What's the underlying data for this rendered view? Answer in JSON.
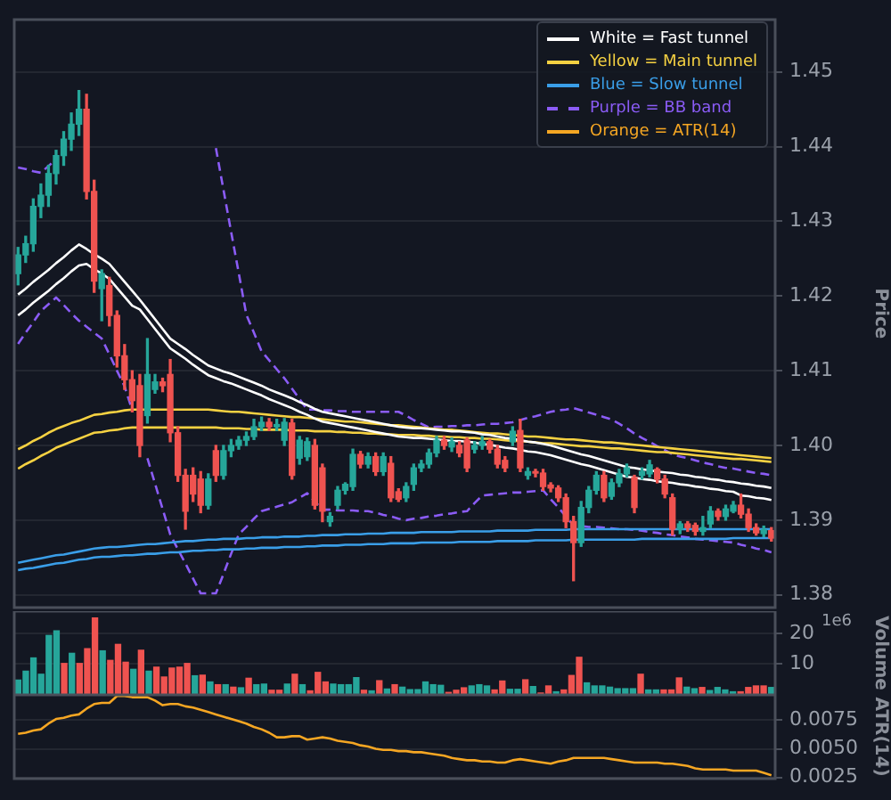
{
  "chart_data": [
    {
      "type": "candlestick",
      "ylabel": "Price",
      "grid": "y",
      "legend": "top right",
      "tick_labels": "y",
      "ylim": [
        1.3783,
        1.457
      ],
      "yticks": [
        1.38,
        1.39,
        {
          "value": 1.4,
          "label": "1.40"
        },
        1.41,
        1.42,
        1.43,
        1.44,
        1.45
      ],
      "categories": [
        null,
        null,
        null,
        null,
        null,
        null,
        null,
        null,
        null,
        null,
        null,
        null,
        null,
        null,
        null,
        null,
        null,
        null,
        null,
        null,
        null,
        null,
        null,
        null,
        null,
        null,
        null,
        null,
        null,
        null,
        null,
        null,
        null,
        null,
        null,
        null,
        null,
        null,
        null,
        null,
        null,
        null,
        null,
        null,
        null,
        null,
        null,
        null,
        null,
        null,
        null,
        null,
        null,
        null,
        null,
        null,
        null,
        null,
        null,
        null,
        null,
        null,
        null,
        null,
        null,
        null,
        null,
        null,
        null,
        null,
        null,
        null,
        null,
        null,
        null,
        null,
        null,
        null,
        null,
        null,
        null,
        null,
        null,
        null,
        null,
        null,
        null,
        null,
        null,
        null,
        null,
        null,
        null,
        null,
        null,
        null,
        null,
        null,
        null,
        null
      ],
      "ohlc": [
        [
          1.423,
          1.4265,
          1.4215,
          1.4255
        ],
        [
          1.4255,
          1.428,
          1.4245,
          1.427
        ],
        [
          1.427,
          1.433,
          1.426,
          1.432
        ],
        [
          1.432,
          1.435,
          1.4305,
          1.4335
        ],
        [
          1.4335,
          1.4375,
          1.432,
          1.4364
        ],
        [
          1.4364,
          1.4395,
          1.435,
          1.4388
        ],
        [
          1.4388,
          1.442,
          1.4375,
          1.441
        ],
        [
          1.441,
          1.4445,
          1.4395,
          1.443
        ],
        [
          1.443,
          1.4475,
          1.4415,
          1.445
        ],
        [
          1.445,
          1.447,
          1.433,
          1.434
        ],
        [
          1.434,
          1.4355,
          1.4205,
          1.422
        ],
        [
          1.421,
          1.4235,
          1.4167,
          1.423
        ],
        [
          1.4214,
          1.4225,
          1.416,
          1.4174
        ],
        [
          1.4174,
          1.418,
          1.4105,
          1.412
        ],
        [
          1.412,
          1.4135,
          1.4075,
          1.4088
        ],
        [
          1.4088,
          1.41,
          1.4045,
          1.406
        ],
        [
          1.408,
          1.4095,
          1.3985,
          1.4
        ],
        [
          1.404,
          1.4143,
          1.403,
          1.4095
        ],
        [
          1.4075,
          1.4095,
          1.407,
          1.4085
        ],
        [
          1.4085,
          1.409,
          1.4072,
          1.408
        ],
        [
          1.4095,
          1.4115,
          1.4005,
          1.4017
        ],
        [
          1.4017,
          1.4025,
          1.3952,
          1.396
        ],
        [
          1.396,
          1.3968,
          1.3888,
          1.3912
        ],
        [
          1.396,
          1.397,
          1.3925,
          1.3935
        ],
        [
          1.3955,
          1.3965,
          1.391,
          1.392
        ],
        [
          1.392,
          1.3962,
          1.3915,
          1.3955
        ],
        [
          1.3993,
          1.4,
          1.3952,
          1.396
        ],
        [
          1.396,
          1.4,
          1.3955,
          1.3993
        ],
        [
          1.3993,
          1.4008,
          1.3985,
          1.4
        ],
        [
          1.4,
          1.4012,
          1.3995,
          1.4007
        ],
        [
          1.4007,
          1.4018,
          1.4,
          1.4012
        ],
        [
          1.4012,
          1.4035,
          1.4008,
          1.4025
        ],
        [
          1.4025,
          1.4038,
          1.402,
          1.4031
        ],
        [
          1.4031,
          1.4036,
          1.402,
          1.4025
        ],
        [
          1.4025,
          1.4035,
          1.402,
          1.4028
        ],
        [
          1.4007,
          1.4036,
          1.4,
          1.4031
        ],
        [
          1.403,
          1.4035,
          1.3955,
          1.396
        ],
        [
          1.3983,
          1.4012,
          1.3975,
          1.4007
        ],
        [
          1.3985,
          1.401,
          1.398,
          1.4005
        ],
        [
          1.4,
          1.4008,
          1.3915,
          1.392
        ],
        [
          1.397,
          1.3975,
          1.3898,
          1.3912
        ],
        [
          1.3898,
          1.391,
          1.3892,
          1.3905
        ],
        [
          1.392,
          1.3945,
          1.3915,
          1.394
        ],
        [
          1.394,
          1.395,
          1.3935,
          1.3948
        ],
        [
          1.3945,
          1.3995,
          1.394,
          1.3988
        ],
        [
          1.3988,
          1.3992,
          1.397,
          1.3975
        ],
        [
          1.3975,
          1.399,
          1.397,
          1.3985
        ],
        [
          1.3985,
          1.399,
          1.396,
          1.3965
        ],
        [
          1.3965,
          1.399,
          1.396,
          1.3985
        ],
        [
          1.3976,
          1.3985,
          1.3925,
          1.393
        ],
        [
          1.3938,
          1.3942,
          1.3925,
          1.3928
        ],
        [
          1.393,
          1.395,
          1.3925,
          1.3945
        ],
        [
          1.3948,
          1.3975,
          1.394,
          1.397
        ],
        [
          1.397,
          1.398,
          1.3965,
          1.3975
        ],
        [
          1.3975,
          1.3995,
          1.397,
          1.399
        ],
        [
          1.399,
          1.4012,
          1.3985,
          1.4007
        ],
        [
          1.4007,
          1.4012,
          1.3995,
          1.4
        ],
        [
          1.3998,
          1.401,
          1.3992,
          1.4005
        ],
        [
          1.4,
          1.4005,
          1.3985,
          1.399
        ],
        [
          1.4007,
          1.401,
          1.3965,
          1.397
        ],
        [
          1.3995,
          1.4005,
          1.399,
          1.4
        ],
        [
          1.4,
          1.4012,
          1.3995,
          1.4005
        ],
        [
          1.4005,
          1.4008,
          1.399,
          1.3995
        ],
        [
          1.3995,
          1.4,
          1.397,
          1.3975
        ],
        [
          1.398,
          1.3985,
          1.3965,
          1.397
        ],
        [
          1.4005,
          1.4025,
          1.4,
          1.4019
        ],
        [
          1.402,
          1.4035,
          1.3965,
          1.397
        ],
        [
          1.396,
          1.397,
          1.3955,
          1.3965
        ],
        [
          1.3965,
          1.3968,
          1.3958,
          1.3963
        ],
        [
          1.3963,
          1.3968,
          1.394,
          1.3945
        ],
        [
          1.3947,
          1.395,
          1.3938,
          1.3943
        ],
        [
          1.3943,
          1.3946,
          1.3925,
          1.393
        ],
        [
          1.393,
          1.3935,
          1.389,
          1.3898
        ],
        [
          1.3898,
          1.3905,
          1.3819,
          1.387
        ],
        [
          1.387,
          1.3925,
          1.3865,
          1.3917
        ],
        [
          1.3917,
          1.3945,
          1.391,
          1.394
        ],
        [
          1.394,
          1.3965,
          1.3935,
          1.396
        ],
        [
          1.396,
          1.3965,
          1.3925,
          1.393
        ],
        [
          1.3932,
          1.3955,
          1.3928,
          1.395
        ],
        [
          1.395,
          1.3968,
          1.3945,
          1.3962
        ],
        [
          1.3962,
          1.3975,
          1.3958,
          1.397
        ],
        [
          1.3957,
          1.396,
          1.391,
          1.3917
        ],
        [
          1.396,
          1.397,
          1.3955,
          1.3965
        ],
        [
          1.3962,
          1.398,
          1.3958,
          1.3974
        ],
        [
          1.3968,
          1.397,
          1.395,
          1.3955
        ],
        [
          1.3955,
          1.396,
          1.393,
          1.3935
        ],
        [
          1.393,
          1.3935,
          1.388,
          1.3888
        ],
        [
          1.3888,
          1.3898,
          1.3882,
          1.3895
        ],
        [
          1.3895,
          1.3898,
          1.3885,
          1.389
        ],
        [
          1.3893,
          1.3896,
          1.388,
          1.3885
        ],
        [
          1.3885,
          1.3905,
          1.388,
          1.389
        ],
        [
          1.3895,
          1.3918,
          1.389,
          1.3912
        ],
        [
          1.3912,
          1.3915,
          1.39,
          1.3905
        ],
        [
          1.3905,
          1.392,
          1.39,
          1.3915
        ],
        [
          1.3912,
          1.3925,
          1.391,
          1.392
        ],
        [
          1.392,
          1.3935,
          1.3903,
          1.3908
        ],
        [
          1.3908,
          1.3915,
          1.3885,
          1.389
        ],
        [
          1.389,
          1.3895,
          1.388,
          1.3883
        ],
        [
          1.3882,
          1.3892,
          1.3878,
          1.3887
        ],
        [
          1.3886,
          1.389,
          1.3872,
          1.3876
        ]
      ],
      "colors": [
        "#26a69a",
        "#26a69a",
        "#26a69a",
        "#26a69a",
        "#26a69a",
        "#26a69a",
        "#26a69a",
        "#26a69a",
        "#26a69a",
        "#ef5350",
        "#ef5350",
        "#26a69a",
        "#ef5350",
        "#ef5350",
        "#ef5350",
        "#ef5350",
        "#ef5350",
        "#26a69a",
        "#26a69a",
        "#ef5350",
        "#ef5350",
        "#ef5350",
        "#ef5350",
        "#ef5350",
        "#ef5350",
        "#26a69a",
        "#ef5350",
        "#26a69a",
        "#26a69a",
        "#26a69a",
        "#26a69a",
        "#26a69a",
        "#26a69a",
        "#ef5350",
        "#26a69a",
        "#26a69a",
        "#ef5350",
        "#26a69a",
        "#26a69a",
        "#ef5350",
        "#ef5350",
        "#26a69a",
        "#26a69a",
        "#26a69a",
        "#26a69a",
        "#ef5350",
        "#26a69a",
        "#ef5350",
        "#26a69a",
        "#ef5350",
        "#ef5350",
        "#26a69a",
        "#26a69a",
        "#26a69a",
        "#26a69a",
        "#26a69a",
        "#ef5350",
        "#26a69a",
        "#ef5350",
        "#ef5350",
        "#26a69a",
        "#26a69a",
        "#ef5350",
        "#ef5350",
        "#ef5350",
        "#26a69a",
        "#ef5350",
        "#26a69a",
        "#ef5350",
        "#ef5350",
        "#ef5350",
        "#ef5350",
        "#ef5350",
        "#ef5350",
        "#26a69a",
        "#26a69a",
        "#26a69a",
        "#ef5350",
        "#26a69a",
        "#26a69a",
        "#26a69a",
        "#ef5350",
        "#26a69a",
        "#26a69a",
        "#ef5350",
        "#ef5350",
        "#ef5350",
        "#26a69a",
        "#ef5350",
        "#ef5350",
        "#26a69a",
        "#26a69a",
        "#ef5350",
        "#26a69a",
        "#26a69a",
        "#ef5350",
        "#ef5350",
        "#ef5350",
        "#26a69a",
        "#ef5350"
      ],
      "series": [
        {
          "type": "line",
          "name": "White = Fast tunnel",
          "color": "#ffffff",
          "values": [
            1.4202,
            1.421,
            1.4219,
            1.4227,
            1.4235,
            1.4244,
            1.4252,
            1.4261,
            1.4269,
            1.4263,
            1.4256,
            1.425,
            1.4243,
            1.4231,
            1.4219,
            1.4207,
            1.4195,
            1.4182,
            1.4169,
            1.4156,
            1.4143,
            1.4136,
            1.4129,
            1.4121,
            1.4114,
            1.4107,
            1.4103,
            1.4099,
            1.4096,
            1.4092,
            1.4088,
            1.4084,
            1.408,
            1.4075,
            1.4071,
            1.4067,
            1.4063,
            1.4058,
            1.4054,
            1.4049,
            1.4045,
            1.4043,
            1.4041,
            1.4039,
            1.4037,
            1.4035,
            1.4033,
            1.4031,
            1.4029,
            1.4027,
            1.4025,
            1.4024,
            1.4023,
            1.4023,
            1.4022,
            1.4021,
            1.402,
            1.4019,
            1.4019,
            1.4018,
            1.4017,
            1.4015,
            1.4014,
            1.4012,
            1.401,
            1.4009,
            1.4007,
            1.4005,
            1.4004,
            1.4002,
            1.4,
            1.3997,
            1.3994,
            1.3991,
            1.3988,
            1.3986,
            1.3983,
            1.398,
            1.3977,
            1.3974,
            1.3971,
            1.397,
            1.3968,
            1.3967,
            1.3965,
            1.3964,
            1.3963,
            1.3961,
            1.396,
            1.3958,
            1.3957,
            1.3955,
            1.3954,
            1.3952,
            1.3951,
            1.3949,
            1.3948,
            1.3946,
            1.3945,
            1.3943
          ]
        },
        {
          "type": "line",
          "color": "#ffffff",
          "values": [
            1.4174,
            1.4182,
            1.4191,
            1.4199,
            1.4207,
            1.4216,
            1.4224,
            1.4233,
            1.4241,
            1.4243,
            1.4236,
            1.423,
            1.4223,
            1.4211,
            1.4199,
            1.4187,
            1.4182,
            1.4169,
            1.4156,
            1.4143,
            1.413,
            1.4123,
            1.4116,
            1.4108,
            1.4101,
            1.4094,
            1.409,
            1.4086,
            1.4083,
            1.4079,
            1.4075,
            1.4071,
            1.4067,
            1.4062,
            1.4058,
            1.4054,
            1.405,
            1.4045,
            1.4041,
            1.4036,
            1.4032,
            1.403,
            1.4028,
            1.4026,
            1.4024,
            1.4022,
            1.402,
            1.4018,
            1.4016,
            1.4014,
            1.4012,
            1.4011,
            1.401,
            1.401,
            1.4009,
            1.4008,
            1.4007,
            1.4006,
            1.4006,
            1.4005,
            1.4004,
            1.4002,
            1.4001,
            1.3999,
            1.3997,
            1.3996,
            1.3994,
            1.3992,
            1.3991,
            1.3989,
            1.3987,
            1.3984,
            1.3981,
            1.3978,
            1.3975,
            1.3973,
            1.397,
            1.3967,
            1.3964,
            1.3961,
            1.3958,
            1.3957,
            1.3955,
            1.3954,
            1.3952,
            1.3951,
            1.395,
            1.3948,
            1.3947,
            1.3945,
            1.3944,
            1.3942,
            1.3941,
            1.3939,
            1.3938,
            1.3933,
            1.3932,
            1.393,
            1.3929,
            1.3927
          ]
        },
        {
          "type": "line",
          "name": "Yellow = Main tunnel",
          "color": "#f5d142",
          "values": [
            1.3995,
            1.4,
            1.4006,
            1.4011,
            1.4017,
            1.4022,
            1.4026,
            1.403,
            1.4033,
            1.4037,
            1.4041,
            1.4042,
            1.4044,
            1.4045,
            1.4047,
            1.4048,
            1.4048,
            1.4048,
            1.4048,
            1.4048,
            1.4048,
            1.4048,
            1.4048,
            1.4048,
            1.4048,
            1.4048,
            1.4047,
            1.4046,
            1.4045,
            1.4045,
            1.4044,
            1.4043,
            1.4042,
            1.4041,
            1.404,
            1.4039,
            1.4038,
            1.4038,
            1.4037,
            1.4036,
            1.4035,
            1.4034,
            1.4033,
            1.4032,
            1.4032,
            1.4031,
            1.403,
            1.4029,
            1.4028,
            1.4027,
            1.4027,
            1.4026,
            1.4025,
            1.4024,
            1.4023,
            1.4022,
            1.4021,
            1.4021,
            1.402,
            1.4019,
            1.4018,
            1.4017,
            1.4016,
            1.4016,
            1.4015,
            1.4014,
            1.4013,
            1.4012,
            1.4012,
            1.4011,
            1.401,
            1.4009,
            1.4008,
            1.4008,
            1.4007,
            1.4006,
            1.4005,
            1.4004,
            1.4004,
            1.4003,
            1.4002,
            1.4001,
            1.4,
            1.3999,
            1.3998,
            1.3997,
            1.3996,
            1.3995,
            1.3994,
            1.3993,
            1.3992,
            1.3991,
            1.399,
            1.3989,
            1.3988,
            1.3987,
            1.3986,
            1.3985,
            1.3984,
            1.3983
          ]
        },
        {
          "type": "line",
          "color": "#f5d142",
          "values": [
            1.3969,
            1.3975,
            1.398,
            1.3986,
            1.3991,
            1.3997,
            1.4001,
            1.4005,
            1.4009,
            1.4013,
            1.4017,
            1.4018,
            1.402,
            1.4021,
            1.4023,
            1.4024,
            1.4024,
            1.4024,
            1.4024,
            1.4024,
            1.4024,
            1.4024,
            1.4024,
            1.4024,
            1.4024,
            1.4024,
            1.4024,
            1.4023,
            1.4023,
            1.4023,
            1.4022,
            1.4022,
            1.4021,
            1.4021,
            1.4021,
            1.4021,
            1.402,
            1.402,
            1.402,
            1.4019,
            1.4019,
            1.4019,
            1.4018,
            1.4018,
            1.4017,
            1.4017,
            1.4016,
            1.4016,
            1.4015,
            1.4015,
            1.4014,
            1.4014,
            1.4014,
            1.4013,
            1.4013,
            1.4012,
            1.4012,
            1.4011,
            1.4011,
            1.401,
            1.401,
            1.4009,
            1.4009,
            1.4008,
            1.4007,
            1.4006,
            1.4006,
            1.4005,
            1.4004,
            1.4003,
            1.4003,
            1.4002,
            1.4001,
            1.4,
            1.3999,
            1.3999,
            1.3998,
            1.3997,
            1.3996,
            1.3996,
            1.3995,
            1.3994,
            1.3993,
            1.3992,
            1.3991,
            1.3991,
            1.399,
            1.3989,
            1.3988,
            1.3987,
            1.3986,
            1.3985,
            1.3984,
            1.3983,
            1.3982,
            1.3982,
            1.3981,
            1.398,
            1.3979,
            1.3978
          ]
        },
        {
          "type": "line",
          "name": "Blue = Slow tunnel",
          "color": "#3a9ee8",
          "values": [
            1.3843,
            1.3845,
            1.3847,
            1.3849,
            1.3851,
            1.3853,
            1.3854,
            1.3856,
            1.3858,
            1.386,
            1.3862,
            1.3863,
            1.3864,
            1.3864,
            1.3865,
            1.3866,
            1.3867,
            1.3868,
            1.3868,
            1.3869,
            1.387,
            1.3871,
            1.3872,
            1.3872,
            1.3873,
            1.3874,
            1.3874,
            1.3875,
            1.3875,
            1.3875,
            1.3876,
            1.3876,
            1.3877,
            1.3877,
            1.3877,
            1.3878,
            1.3878,
            1.3878,
            1.3879,
            1.3879,
            1.388,
            1.388,
            1.388,
            1.3881,
            1.3881,
            1.3881,
            1.3882,
            1.3882,
            1.3882,
            1.3883,
            1.3883,
            1.3883,
            1.3883,
            1.3884,
            1.3884,
            1.3884,
            1.3884,
            1.3884,
            1.3885,
            1.3885,
            1.3885,
            1.3885,
            1.3885,
            1.3886,
            1.3886,
            1.3886,
            1.3886,
            1.3886,
            1.3887,
            1.3887,
            1.3887,
            1.3887,
            1.3887,
            1.3888,
            1.3888,
            1.3888,
            1.3888,
            1.3888,
            1.3888,
            1.3888,
            1.3888,
            1.3888,
            1.3888,
            1.3888,
            1.3888,
            1.3888,
            1.3888,
            1.3888,
            1.3888,
            1.3888,
            1.3888,
            1.3888,
            1.3888,
            1.3888,
            1.3888,
            1.3888,
            1.3888,
            1.3888,
            1.3888,
            1.3888
          ]
        },
        {
          "type": "line",
          "color": "#3a9ee8",
          "values": [
            1.3833,
            1.3835,
            1.3836,
            1.3838,
            1.384,
            1.3842,
            1.3843,
            1.3845,
            1.3847,
            1.3848,
            1.385,
            1.3851,
            1.3851,
            1.3852,
            1.3853,
            1.3853,
            1.3854,
            1.3855,
            1.3855,
            1.3856,
            1.3857,
            1.3857,
            1.3858,
            1.3859,
            1.3859,
            1.386,
            1.386,
            1.3861,
            1.3861,
            1.3861,
            1.3862,
            1.3862,
            1.3863,
            1.3863,
            1.3863,
            1.3864,
            1.3864,
            1.3864,
            1.3865,
            1.3865,
            1.3866,
            1.3866,
            1.3866,
            1.3867,
            1.3867,
            1.3867,
            1.3868,
            1.3868,
            1.3868,
            1.3869,
            1.3869,
            1.3869,
            1.3869,
            1.387,
            1.387,
            1.387,
            1.387,
            1.387,
            1.3871,
            1.3871,
            1.3871,
            1.3871,
            1.3871,
            1.3872,
            1.3872,
            1.3872,
            1.3872,
            1.3872,
            1.3873,
            1.3873,
            1.3873,
            1.3873,
            1.3873,
            1.3874,
            1.3874,
            1.3874,
            1.3874,
            1.3874,
            1.3874,
            1.3874,
            1.3874,
            1.3874,
            1.3875,
            1.3875,
            1.3875,
            1.3875,
            1.3875,
            1.3875,
            1.3875,
            1.3875,
            1.3875,
            1.3875,
            1.3875,
            1.3875,
            1.3876,
            1.3876,
            1.3876,
            1.3876,
            1.3876,
            1.3876
          ]
        },
        {
          "type": "line",
          "name": "Purple = BB band",
          "color": "#8b5cf6",
          "line_style": "dashed",
          "values": [
            1.4372,
            1.437,
            1.4367,
            1.4365,
            1.4374,
            1.4383,
            null,
            null,
            null,
            null,
            null,
            null,
            null,
            null,
            null,
            null,
            null,
            null,
            null,
            null,
            null,
            null,
            null,
            null,
            null,
            null,
            1.4398,
            1.4342,
            1.4286,
            1.4231,
            1.4175,
            1.4151,
            1.4126,
            1.4114,
            1.4102,
            1.409,
            1.4076,
            1.4062,
            1.4048,
            1.4048,
            1.4047,
            1.4047,
            1.4046,
            1.4046,
            1.4045,
            1.4045,
            1.4045,
            1.4045,
            1.4045,
            1.4045,
            1.4045,
            1.404,
            1.4034,
            1.4029,
            1.4024,
            1.4025,
            1.4025,
            1.4026,
            1.4026,
            1.4027,
            1.4027,
            1.4028,
            1.4029,
            1.4029,
            1.403,
            1.4031,
            1.4034,
            1.4037,
            1.4039,
            1.4042,
            1.4045,
            1.4047,
            1.4048,
            1.405,
            1.4047,
            1.4044,
            1.4041,
            1.4038,
            1.4035,
            1.4029,
            1.4023,
            1.4016,
            1.401,
            1.4005,
            1.3999,
            1.3994,
            1.3988,
            1.3985,
            1.3983,
            1.398,
            1.3977,
            1.3975,
            1.3972,
            1.397,
            1.3969,
            1.3967,
            1.3965,
            1.3963,
            1.3962,
            1.396
          ]
        },
        {
          "type": "line",
          "color": "#8b5cf6",
          "line_style": "dashed",
          "values": [
            1.4136,
            1.4151,
            1.4165,
            1.418,
            1.4189,
            1.4198,
            1.4188,
            1.4177,
            1.4167,
            1.4159,
            1.4151,
            1.4143,
            1.4122,
            1.41,
            1.4079,
            1.4047,
            null,
            1.3983,
            1.3949,
            1.3915,
            1.3881,
            1.3861,
            1.3842,
            1.3822,
            1.3802,
            1.3802,
            1.3802,
            1.3828,
            1.3855,
            1.3881,
            1.3891,
            1.3902,
            1.3912,
            1.3915,
            1.3918,
            1.3921,
            1.3924,
            1.393,
            1.3936,
            1.3925,
            1.3914,
            1.3914,
            1.3913,
            1.3913,
            1.3913,
            1.3912,
            1.3912,
            1.391,
            1.3907,
            1.3905,
            1.3902,
            1.39,
            1.3902,
            1.3903,
            1.3905,
            1.3906,
            1.3908,
            1.3909,
            1.3911,
            1.3912,
            1.3923,
            1.3933,
            1.3934,
            1.3935,
            1.3936,
            1.3937,
            1.3937,
            1.3938,
            1.3939,
            1.394,
            1.3928,
            1.3917,
            1.3905,
            1.3893,
            1.3892,
            1.3891,
            1.3891,
            1.389,
            1.3889,
            1.3888,
            1.3888,
            1.3887,
            1.3886,
            1.3884,
            1.3883,
            1.3881,
            1.388,
            1.3878,
            1.3877,
            1.3875,
            1.3874,
            1.3873,
            1.3872,
            1.3871,
            1.387,
            1.3867,
            1.3865,
            1.3862,
            1.386,
            1.3857
          ]
        }
      ]
    },
    {
      "type": "bar",
      "ylabel": "Volume",
      "grid": "y",
      "tick_labels": "y",
      "annotations": [
        "1e6"
      ],
      "ylim": [
        0,
        27.2
      ],
      "yticks": [
        10,
        20
      ],
      "categories": [
        null,
        null,
        null,
        null,
        null,
        null,
        null,
        null,
        null,
        null,
        null,
        null,
        null,
        null,
        null,
        null,
        null,
        null,
        null,
        null,
        null,
        null,
        null,
        null,
        null,
        null,
        null,
        null,
        null,
        null,
        null,
        null,
        null,
        null,
        null,
        null,
        null,
        null,
        null,
        null,
        null,
        null,
        null,
        null,
        null,
        null,
        null,
        null,
        null,
        null,
        null,
        null,
        null,
        null,
        null,
        null,
        null,
        null,
        null,
        null,
        null,
        null,
        null,
        null,
        null,
        null,
        null,
        null,
        null,
        null,
        null,
        null,
        null,
        null,
        null,
        null,
        null,
        null,
        null,
        null,
        null,
        null,
        null,
        null,
        null,
        null,
        null,
        null,
        null,
        null,
        null,
        null,
        null,
        null,
        null,
        null,
        null,
        null,
        null
      ],
      "values": [
        4.8,
        7.7,
        12,
        6.7,
        19.3,
        20.8,
        10.2,
        13.5,
        10.2,
        15,
        25,
        14.3,
        11.2,
        16.4,
        10.6,
        8.3,
        14.5,
        7.7,
        9,
        5.8,
        8.7,
        9,
        10.2,
        6.2,
        6.4,
        4.2,
        3.3,
        3.3,
        2.5,
        2.3,
        5.4,
        3.3,
        3.5,
        1.5,
        1.5,
        3.5,
        6.7,
        3.3,
        1.3,
        7.3,
        4.2,
        3.5,
        3.3,
        3.3,
        5.6,
        1.5,
        1.3,
        4.6,
        1.9,
        3.3,
        2.5,
        1.7,
        1.7,
        4.2,
        3.3,
        3.1,
        0.8,
        1.5,
        2.3,
        2.9,
        3.3,
        2.9,
        1.6,
        4.5,
        1.8,
        1.8,
        4.9,
        2.7,
        0.6,
        2.9,
        1,
        1.6,
        6.3,
        12.2,
        3.9,
        2.9,
        2.9,
        2.5,
        2,
        2,
        2,
        6.7,
        1.6,
        1.6,
        1.6,
        1.6,
        5.5,
        2.5,
        2,
        2.4,
        1.4,
        2.4,
        1.6,
        1,
        1,
        2.4,
        2.9,
        2.9,
        2.4
      ],
      "colors": [
        "#26a69a",
        "#26a69a",
        "#26a69a",
        "#26a69a",
        "#26a69a",
        "#26a69a",
        "#ef5350",
        "#26a69a",
        "#ef5350",
        "#ef5350",
        "#ef5350",
        "#26a69a",
        "#ef5350",
        "#ef5350",
        "#ef5350",
        "#26a69a",
        "#ef5350",
        "#26a69a",
        "#ef5350",
        "#ef5350",
        "#ef5350",
        "#ef5350",
        "#ef5350",
        "#26a69a",
        "#ef5350",
        "#26a69a",
        "#ef5350",
        "#26a69a",
        "#ef5350",
        "#26a69a",
        "#ef5350",
        "#26a69a",
        "#26a69a",
        "#ef5350",
        "#ef5350",
        "#26a69a",
        "#ef5350",
        "#26a69a",
        "#ef5350",
        "#ef5350",
        "#ef5350",
        "#26a69a",
        "#26a69a",
        "#26a69a",
        "#26a69a",
        "#ef5350",
        "#26a69a",
        "#ef5350",
        "#26a69a",
        "#ef5350",
        "#26a69a",
        "#26a69a",
        "#26a69a",
        "#26a69a",
        "#26a69a",
        "#26a69a",
        "#ef5350",
        "#ef5350",
        "#ef5350",
        "#26a69a",
        "#26a69a",
        "#26a69a",
        "#ef5350",
        "#ef5350",
        "#26a69a",
        "#26a69a",
        "#ef5350",
        "#26a69a",
        "#ef5350",
        "#ef5350",
        "#26a69a",
        "#ef5350",
        "#ef5350",
        "#ef5350",
        "#26a69a",
        "#26a69a",
        "#26a69a",
        "#26a69a",
        "#26a69a",
        "#26a69a",
        "#26a69a",
        "#ef5350",
        "#26a69a",
        "#26a69a",
        "#ef5350",
        "#ef5350",
        "#ef5350",
        "#26a69a",
        "#26a69a",
        "#ef5350",
        "#26a69a",
        "#26a69a",
        "#26a69a",
        "#26a69a",
        "#ef5350",
        "#ef5350",
        "#ef5350",
        "#ef5350",
        "#26a69a"
      ]
    },
    {
      "type": "line",
      "ylabel": "ATR(14)",
      "grid": "y",
      "tick_labels": "y",
      "ylim": [
        0.0024,
        0.0097
      ],
      "yticks": [
        0.0025,
        {
          "value": 0.005,
          "label": "0.0050"
        },
        0.0075
      ],
      "categories": [
        null,
        null,
        null,
        null,
        null,
        null,
        null,
        null,
        null,
        null,
        null,
        null,
        null,
        null,
        null,
        null,
        null,
        null,
        null,
        null,
        null,
        null,
        null,
        null,
        null,
        null,
        null,
        null,
        null,
        null,
        null,
        null,
        null,
        null,
        null,
        null,
        null,
        null,
        null,
        null,
        null,
        null,
        null,
        null,
        null,
        null,
        null,
        null,
        null,
        null,
        null,
        null,
        null,
        null,
        null,
        null,
        null,
        null,
        null,
        null,
        null,
        null,
        null,
        null,
        null,
        null,
        null,
        null,
        null,
        null,
        null,
        null,
        null,
        null,
        null,
        null,
        null,
        null,
        null,
        null,
        null,
        null,
        null,
        null,
        null,
        null,
        null,
        null,
        null,
        null,
        null,
        null,
        null,
        null,
        null,
        null,
        null,
        null,
        null,
        null
      ],
      "series": [
        {
          "name": "Orange = ATR(14)",
          "color": "#f5a623",
          "values": [
            0.0063,
            0.0064,
            0.0066,
            0.0067,
            0.0072,
            0.0076,
            0.0077,
            0.0079,
            0.008,
            0.0085,
            0.0089,
            0.009,
            0.009,
            0.0096,
            0.0096,
            0.0095,
            0.0095,
            0.0095,
            0.0092,
            0.0088,
            0.0089,
            0.0089,
            0.0087,
            0.0086,
            0.0084,
            0.0082,
            0.008,
            0.0078,
            0.0076,
            0.0074,
            0.0072,
            0.0069,
            0.0067,
            0.0064,
            0.006,
            0.006,
            0.0061,
            0.0061,
            0.0058,
            0.0059,
            0.006,
            0.0059,
            0.0057,
            0.0056,
            0.0055,
            0.0053,
            0.0052,
            0.005,
            0.0049,
            0.0049,
            0.0048,
            0.0048,
            0.0047,
            0.0047,
            0.0046,
            0.0045,
            0.0044,
            0.0042,
            0.0041,
            0.004,
            0.004,
            0.0039,
            0.0039,
            0.0038,
            0.0038,
            0.004,
            0.0041,
            0.004,
            0.0039,
            0.0038,
            0.0037,
            0.0039,
            0.004,
            0.0042,
            0.0042,
            0.0042,
            0.0042,
            0.0042,
            0.0041,
            0.004,
            0.0039,
            0.0038,
            0.0038,
            0.0038,
            0.0038,
            0.0037,
            0.0037,
            0.0036,
            0.0035,
            0.0033,
            0.0032,
            0.0032,
            0.0032,
            0.0032,
            0.0031,
            0.0031,
            0.0031,
            0.0031,
            0.0029,
            0.0027
          ]
        }
      ]
    }
  ]
}
